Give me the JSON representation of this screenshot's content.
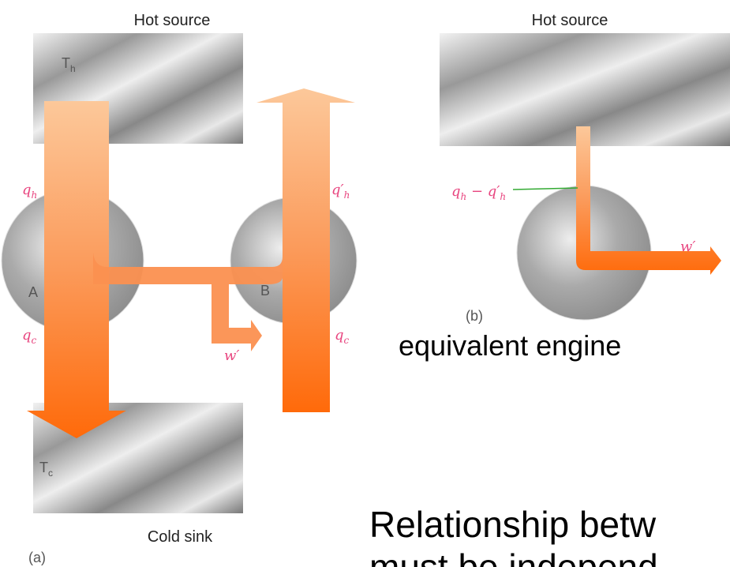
{
  "panel_a": {
    "hot_label": "Hot source",
    "cold_label": "Cold sink",
    "caption": "(a)",
    "t_hot": [
      "T",
      "h"
    ],
    "t_cold": [
      "T",
      "c"
    ],
    "engine_a": "A",
    "engine_b": "B",
    "qh": [
      "q",
      "h"
    ],
    "qh_prime": [
      "q′",
      "h"
    ],
    "qc_left": [
      "q",
      "c"
    ],
    "qc_right": [
      "q",
      "c"
    ],
    "work": "w′"
  },
  "panel_b": {
    "hot_label": "Hot source",
    "caption": "(b)",
    "heat_difference": [
      "q",
      "h",
      " − q′",
      "h"
    ],
    "work": "w′",
    "title": "equivalent engine"
  },
  "footer": {
    "lines": [
      "Relationship betw",
      "must be independ"
    ]
  }
}
